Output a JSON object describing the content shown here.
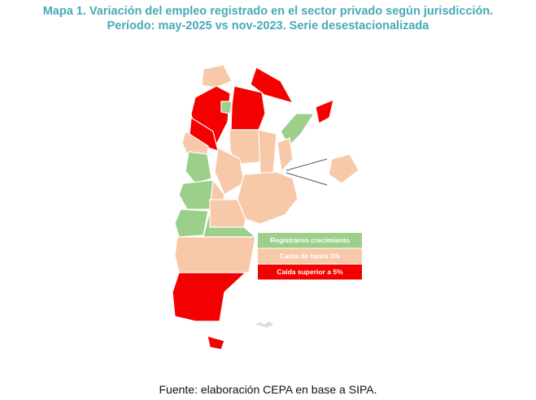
{
  "title": [
    "Mapa 1. Variación del empleo registrado en el sector privado según jurisdicción.",
    "Período: may-2025 vs nov-2023. Serie desestacionalizada"
  ],
  "legend": [
    {
      "label": "Registraron crecimiento",
      "color": "#9bcf8a"
    },
    {
      "label": "Caída de hasta 5%",
      "color": "#f7c9a8"
    },
    {
      "label": "Caída superior a 5%",
      "color": "#f50000"
    }
  ],
  "source": "Fuente: elaboración CEPA en base a SIPA."
}
